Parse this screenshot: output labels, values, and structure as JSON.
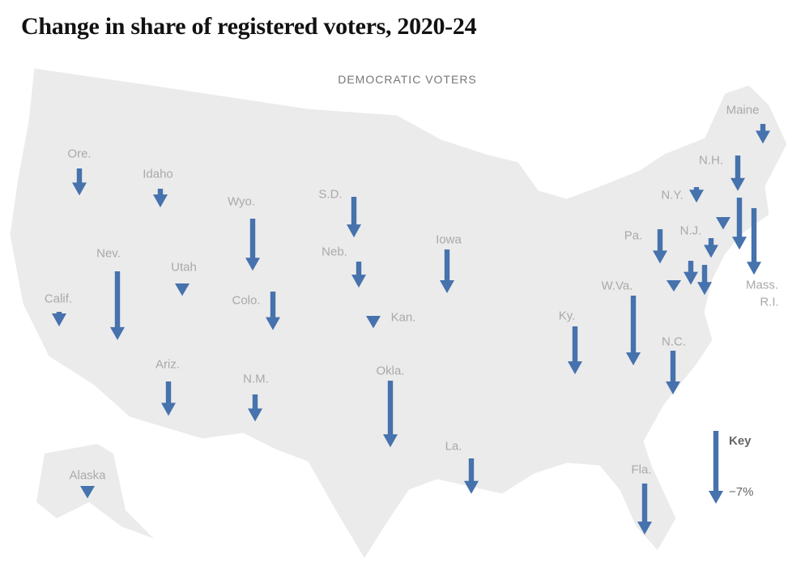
{
  "title": "Change in share of registered voters, 2020-24",
  "subtitle": "DEMOCRATIC VOTERS",
  "arrow_color": "#4672ad",
  "key": {
    "label": "Key",
    "value_label": "−7%",
    "value": -7
  },
  "states": [
    {
      "label": "Ore.",
      "change": -2.6
    },
    {
      "label": "Idaho",
      "change": -1.8
    },
    {
      "label": "Wyo.",
      "change": -5.0
    },
    {
      "label": "S.D.",
      "change": -3.9
    },
    {
      "label": "Neb.",
      "change": -2.5
    },
    {
      "label": "Iowa",
      "change": -4.2
    },
    {
      "label": "Nev.",
      "change": -6.6
    },
    {
      "label": "Utah",
      "change": -1.2
    },
    {
      "label": "Calif.",
      "change": -1.4
    },
    {
      "label": "Colo.",
      "change": -3.7
    },
    {
      "label": "Kan.",
      "change": -1.2
    },
    {
      "label": "Ariz.",
      "change": -3.3
    },
    {
      "label": "N.M.",
      "change": -2.6
    },
    {
      "label": "Okla.",
      "change": -6.4
    },
    {
      "label": "Ky.",
      "change": -4.6
    },
    {
      "label": "W.Va.",
      "change": -6.7
    },
    {
      "label": "N.C.",
      "change": -4.2
    },
    {
      "label": "La.",
      "change": -3.4
    },
    {
      "label": "Fla.",
      "change": -4.9
    },
    {
      "label": "Alaska",
      "change": -1.2
    },
    {
      "label": "Maine",
      "change": -1.9
    },
    {
      "label": "N.H.",
      "change": -3.4
    },
    {
      "label": "N.Y.",
      "change": -1.5
    },
    {
      "label": "Pa.",
      "change": -3.3
    },
    {
      "label": "N.J.",
      "change": -1.9
    },
    {
      "label": "Mass.",
      "change": -5.0
    },
    {
      "label": "R.I.",
      "change": -6.4
    },
    {
      "label": "",
      "change": -1.2
    },
    {
      "label": "",
      "change": -2.3
    },
    {
      "label": "",
      "change": -2.9
    },
    {
      "label": "",
      "change": -1.0
    }
  ]
}
